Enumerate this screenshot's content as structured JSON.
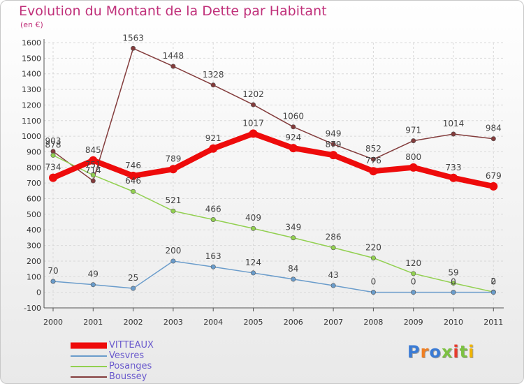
{
  "page": {
    "title": "Evolution du Montant de la Dette par Habitant",
    "subtitle": "(en €)",
    "logo": "Proxiti",
    "logo_colors": [
      "#3a7bd5",
      "#f07f22",
      "#3a7bd5",
      "#7cc142",
      "#e63c2e",
      "#7cc142",
      "#f0b400"
    ]
  },
  "chart_data": {
    "type": "line",
    "title": "Evolution du Montant de la Dette par Habitant",
    "subtitle": "(en €)",
    "xlabel": "",
    "ylabel": "",
    "ylim": [
      -100,
      1600
    ],
    "yticks": [
      -100,
      0,
      100,
      200,
      300,
      400,
      500,
      600,
      700,
      800,
      900,
      1000,
      1100,
      1200,
      1300,
      1400,
      1500,
      1600
    ],
    "grid": true,
    "legend_position": "bottom-left",
    "categories": [
      "2000",
      "2001",
      "2002",
      "2003",
      "2004",
      "2005",
      "2006",
      "2007",
      "2008",
      "2009",
      "2010",
      "2011"
    ],
    "series": [
      {
        "name": "VITTEAUX",
        "color": "#ee0b0b",
        "values": [
          734,
          845,
          746,
          789,
          921,
          1017,
          924,
          879,
          776,
          800,
          733,
          679
        ],
        "labels": [
          "734",
          "845",
          "746",
          "789",
          "921",
          "1017",
          "924",
          "879",
          "776",
          "800",
          "733",
          "679"
        ]
      },
      {
        "name": "Vesvres",
        "color": "#6a9ccb",
        "values": [
          70,
          49,
          25,
          200,
          163,
          124,
          84,
          43,
          0,
          0,
          0,
          0
        ],
        "labels": [
          "70",
          "49",
          "25",
          "200",
          "163",
          "124",
          "84",
          "43",
          "0",
          "0",
          "0",
          "0"
        ]
      },
      {
        "name": "Posanges",
        "color": "#92d050",
        "values": [
          878,
          751,
          646,
          521,
          466,
          409,
          349,
          286,
          220,
          120,
          59,
          2
        ],
        "labels": [
          "878",
          "751",
          "646",
          "521",
          "466",
          "409",
          "349",
          "286",
          "220",
          "120",
          "59",
          "2"
        ]
      },
      {
        "name": "Boussey",
        "color": "#833c3c",
        "values": [
          903,
          714,
          1563,
          1448,
          1328,
          1202,
          1060,
          949,
          852,
          971,
          1014,
          984
        ],
        "labels": [
          "903",
          "714",
          "1563",
          "1448",
          "1328",
          "1202",
          "1060",
          "949",
          "852",
          "971",
          "1014",
          "984"
        ]
      }
    ]
  }
}
